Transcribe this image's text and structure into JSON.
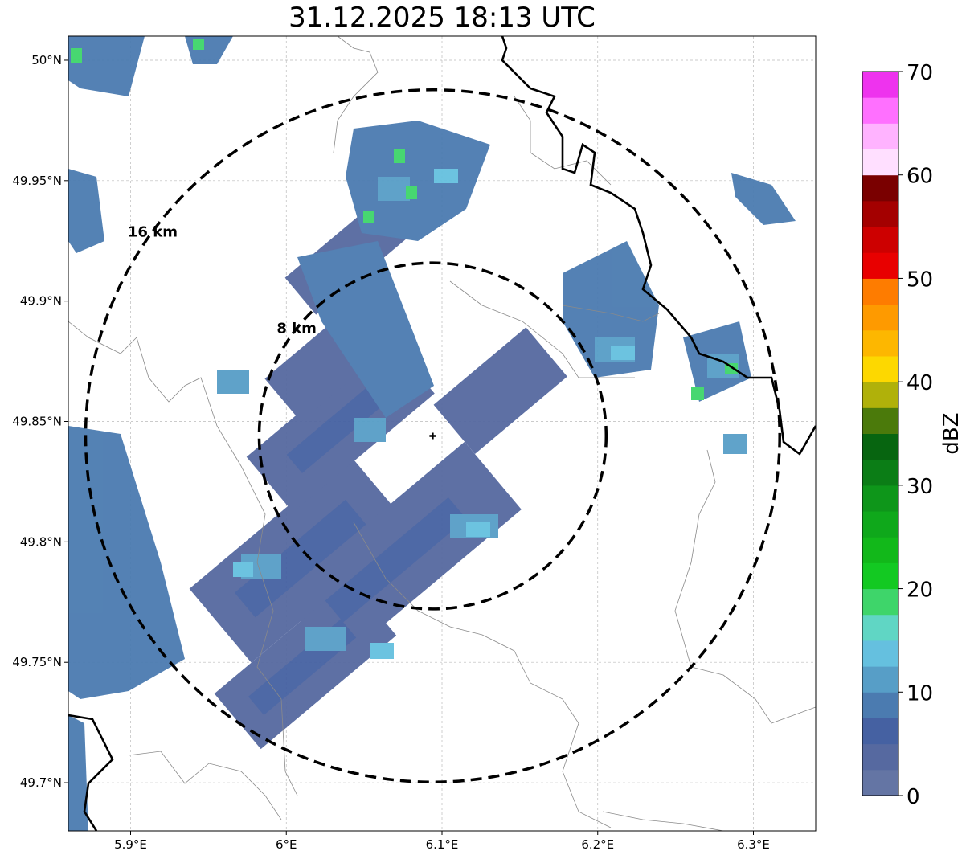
{
  "title": "31.12.2025 18:13 UTC",
  "map": {
    "lon_range": [
      5.86,
      6.34
    ],
    "lat_range": [
      49.68,
      50.01
    ],
    "x_ticks": [
      {
        "value": 5.9,
        "label": "5.9°E"
      },
      {
        "value": 6.0,
        "label": "6°E"
      },
      {
        "value": 6.1,
        "label": "6.1°E"
      },
      {
        "value": 6.2,
        "label": "6.2°E"
      },
      {
        "value": 6.3,
        "label": "6.3°E"
      }
    ],
    "y_ticks": [
      {
        "value": 50.0,
        "label": "50°N"
      },
      {
        "value": 49.95,
        "label": "49.95°N"
      },
      {
        "value": 49.9,
        "label": "49.9°N"
      },
      {
        "value": 49.85,
        "label": "49.85°N"
      },
      {
        "value": 49.8,
        "label": "49.8°N"
      },
      {
        "value": 49.75,
        "label": "49.75°N"
      },
      {
        "value": 49.7,
        "label": "49.7°N"
      }
    ],
    "grid": true,
    "center": {
      "lon": 6.094,
      "lat": 49.844
    },
    "range_rings": [
      {
        "radius_km": 8,
        "label": "8 km"
      },
      {
        "radius_km": 16,
        "label": "16 km"
      }
    ]
  },
  "colorbar": {
    "label": "dBZ",
    "ticks": [
      0,
      10,
      20,
      30,
      40,
      50,
      60,
      70
    ],
    "colors": [
      "#6475a4",
      "#5669a0",
      "#4561a2",
      "#4b7bb0",
      "#579ec7",
      "#65c0df",
      "#60d6c4",
      "#3ed56a",
      "#13c922",
      "#12b81a",
      "#0fa81b",
      "#0e961a",
      "#0b7d16",
      "#076510",
      "#4b7a0b",
      "#b0b10a",
      "#fdd800",
      "#fdb700",
      "#fe9a00",
      "#fe7c00",
      "#e80000",
      "#cd0000",
      "#a40000",
      "#7a0000",
      "#ffdfff",
      "#ffb3ff",
      "#ff70ff",
      "#ee33ee"
    ]
  }
}
